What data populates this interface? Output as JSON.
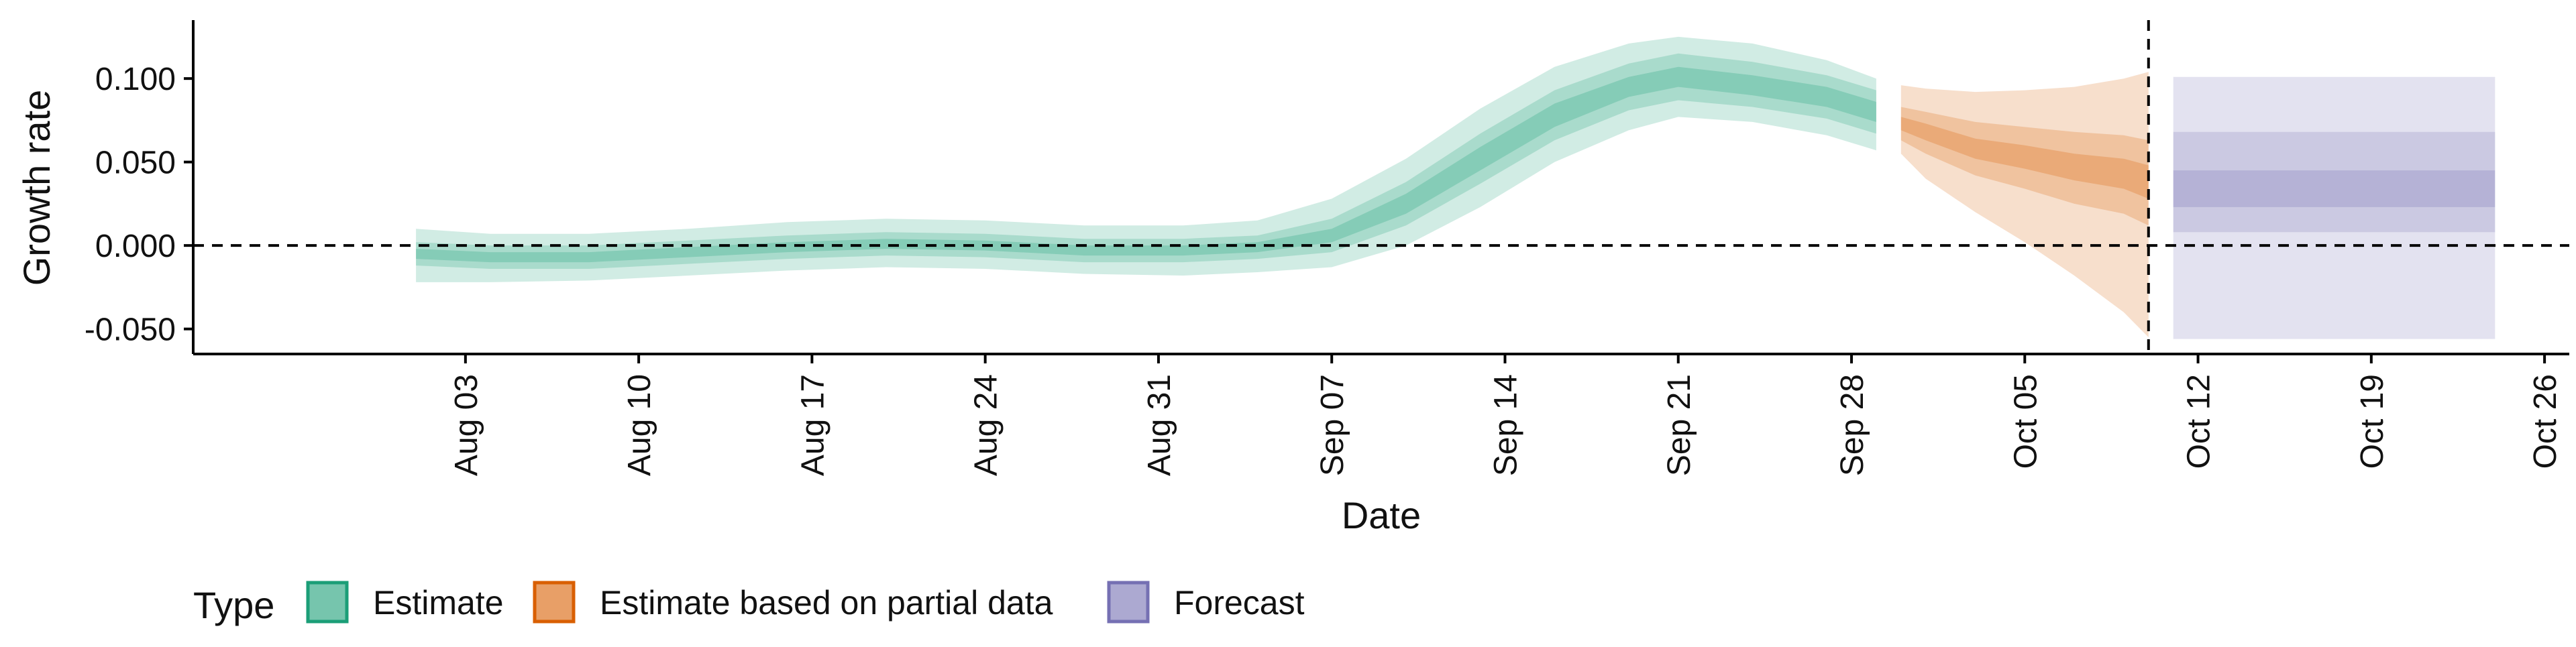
{
  "chart_data": {
    "type": "area",
    "title": "",
    "xlabel": "Date",
    "ylabel": "Growth rate",
    "x_ticks": [
      "Aug 03",
      "Aug 10",
      "Aug 17",
      "Aug 24",
      "Aug 31",
      "Sep 07",
      "Sep 14",
      "Sep 21",
      "Sep 28",
      "Oct 05",
      "Oct 12",
      "Oct 19",
      "Oct 26"
    ],
    "y_ticks": [
      "-0.050",
      "0.000",
      "0.050",
      "0.100"
    ],
    "ylim": [
      -0.065,
      0.135
    ],
    "xlim": [
      "2020-07-23",
      "2020-10-27"
    ],
    "grid": false,
    "reference_lines": {
      "horizontal_y": 0,
      "vertical_date": "2020-10-10"
    },
    "legend": {
      "title": "Type",
      "placement": "bottom-left",
      "items": [
        "Estimate",
        "Estimate based on partial data",
        "Forecast"
      ]
    },
    "colors": {
      "estimate": "#1b9e77",
      "partial": "#d95f02",
      "forecast": "#7570b3"
    },
    "series": [
      {
        "name": "Estimate",
        "x": [
          "2020-08-01",
          "2020-08-04",
          "2020-08-08",
          "2020-08-12",
          "2020-08-16",
          "2020-08-20",
          "2020-08-24",
          "2020-08-28",
          "2020-09-01",
          "2020-09-04",
          "2020-09-07",
          "2020-09-10",
          "2020-09-13",
          "2020-09-16",
          "2020-09-19",
          "2020-09-21",
          "2020-09-24",
          "2020-09-27",
          "2020-09-29"
        ],
        "median": [
          -0.005,
          -0.007,
          -0.007,
          -0.004,
          -0.001,
          0.001,
          0.0,
          -0.003,
          -0.003,
          -0.001,
          0.006,
          0.025,
          0.052,
          0.078,
          0.095,
          0.101,
          0.096,
          0.089,
          0.08
        ],
        "lower20": [
          -0.008,
          -0.01,
          -0.01,
          -0.007,
          -0.004,
          -0.002,
          -0.003,
          -0.006,
          -0.006,
          -0.004,
          0.002,
          0.019,
          0.045,
          0.071,
          0.089,
          0.095,
          0.09,
          0.083,
          0.074
        ],
        "upper20": [
          -0.002,
          -0.004,
          -0.004,
          -0.001,
          0.002,
          0.004,
          0.003,
          0.0,
          0.0,
          0.002,
          0.01,
          0.031,
          0.059,
          0.085,
          0.101,
          0.107,
          0.102,
          0.095,
          0.086
        ],
        "lower50": [
          -0.012,
          -0.014,
          -0.014,
          -0.011,
          -0.008,
          -0.006,
          -0.007,
          -0.01,
          -0.01,
          -0.008,
          -0.004,
          0.012,
          0.037,
          0.063,
          0.081,
          0.087,
          0.083,
          0.076,
          0.067
        ],
        "upper50": [
          0.002,
          0.0,
          0.0,
          0.003,
          0.006,
          0.008,
          0.007,
          0.004,
          0.004,
          0.006,
          0.016,
          0.038,
          0.067,
          0.093,
          0.109,
          0.115,
          0.11,
          0.102,
          0.093
        ],
        "lower90": [
          -0.022,
          -0.022,
          -0.021,
          -0.018,
          -0.015,
          -0.013,
          -0.014,
          -0.017,
          -0.018,
          -0.016,
          -0.013,
          0.0,
          0.023,
          0.05,
          0.069,
          0.077,
          0.074,
          0.066,
          0.057
        ],
        "upper90": [
          0.01,
          0.007,
          0.007,
          0.01,
          0.014,
          0.016,
          0.015,
          0.012,
          0.012,
          0.015,
          0.028,
          0.052,
          0.082,
          0.107,
          0.121,
          0.125,
          0.121,
          0.111,
          0.1
        ]
      },
      {
        "name": "Estimate based on partial data",
        "x": [
          "2020-09-30",
          "2020-10-01",
          "2020-10-03",
          "2020-10-05",
          "2020-10-07",
          "2020-10-09",
          "2020-10-10"
        ],
        "median": [
          0.073,
          0.068,
          0.058,
          0.053,
          0.047,
          0.043,
          0.038
        ],
        "lower20": [
          0.069,
          0.063,
          0.052,
          0.046,
          0.039,
          0.034,
          0.028
        ],
        "upper20": [
          0.077,
          0.073,
          0.064,
          0.06,
          0.055,
          0.052,
          0.048
        ],
        "lower50": [
          0.063,
          0.055,
          0.042,
          0.034,
          0.025,
          0.019,
          0.012
        ],
        "upper50": [
          0.083,
          0.08,
          0.074,
          0.071,
          0.068,
          0.066,
          0.063
        ],
        "lower90": [
          0.055,
          0.04,
          0.02,
          0.002,
          -0.018,
          -0.04,
          -0.055
        ],
        "upper90": [
          0.096,
          0.094,
          0.092,
          0.093,
          0.095,
          0.1,
          0.104
        ]
      },
      {
        "name": "Forecast",
        "x": [
          "2020-10-11",
          "2020-10-24"
        ],
        "median": [
          0.034,
          0.034
        ],
        "lower20": [
          0.023,
          0.023
        ],
        "upper20": [
          0.045,
          0.045
        ],
        "lower50": [
          0.008,
          0.008
        ],
        "upper50": [
          0.068,
          0.068
        ],
        "lower90": [
          -0.056,
          -0.056
        ],
        "upper90": [
          0.101,
          0.101
        ]
      }
    ]
  }
}
